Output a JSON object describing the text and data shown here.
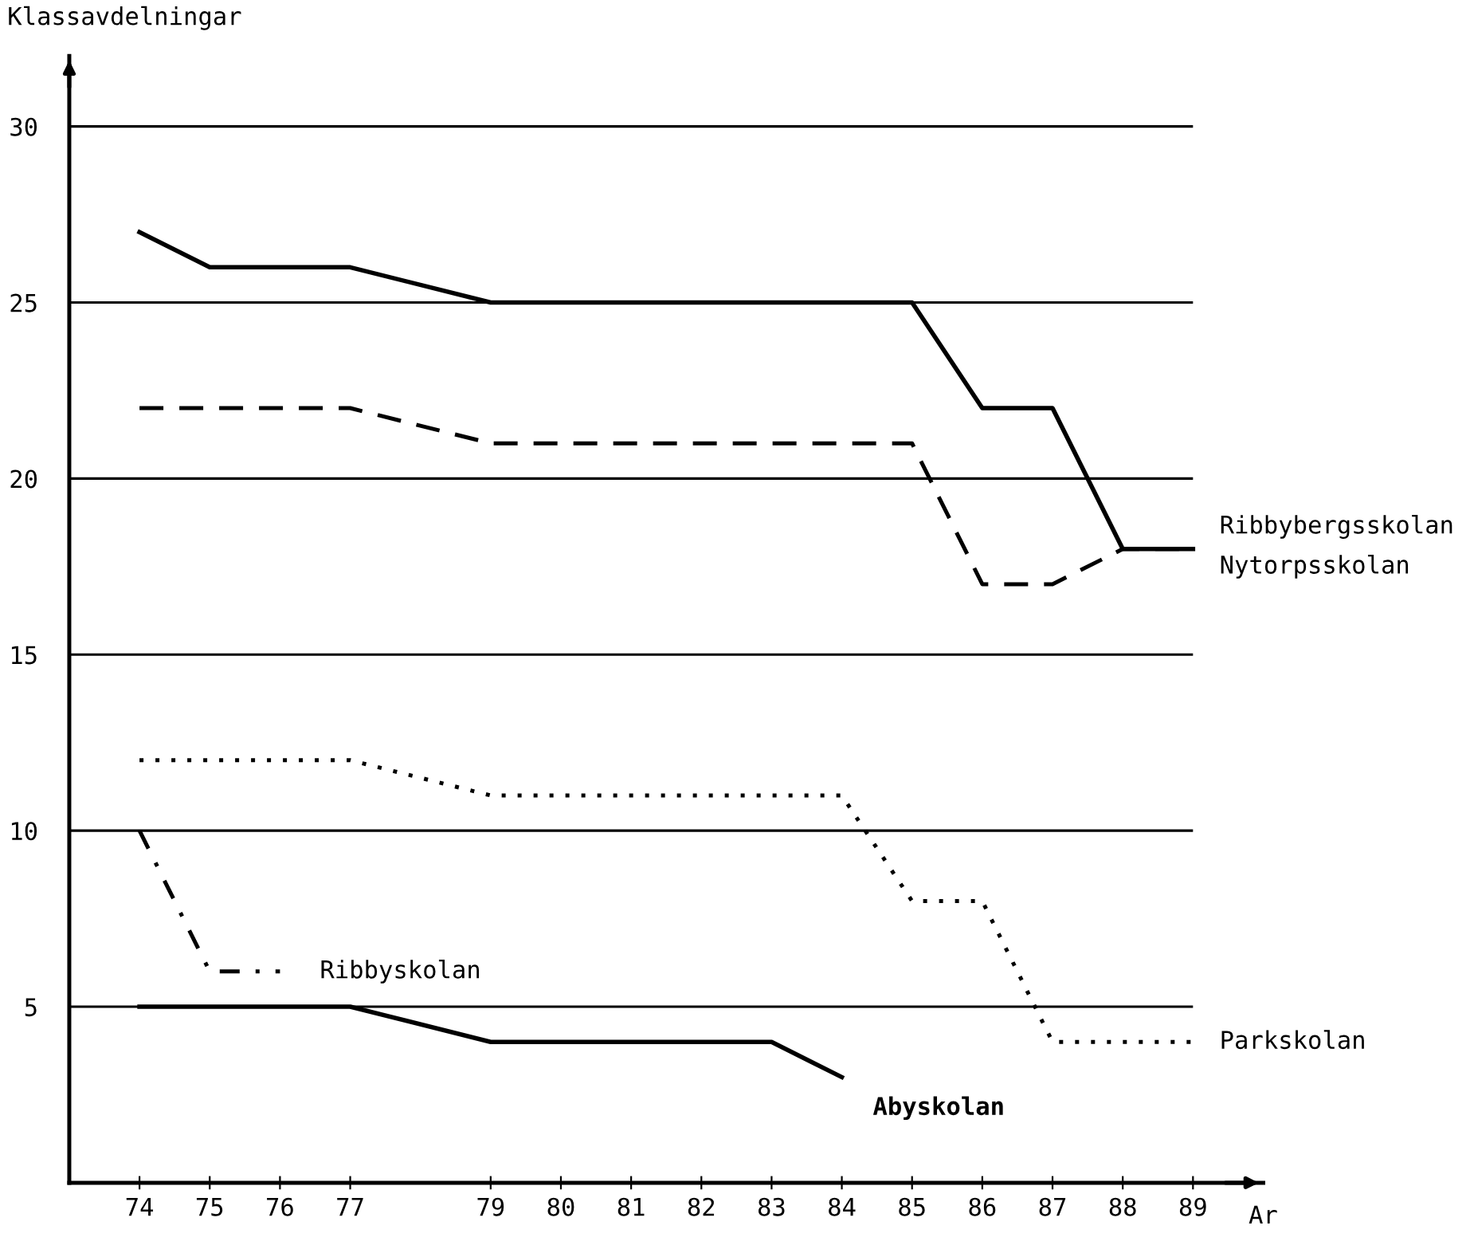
{
  "chart_data": {
    "type": "line",
    "ylabel": "Klassavdelningar",
    "xlabel": "Ar",
    "xlim": [
      73,
      90
    ],
    "xticks": [
      74,
      75,
      76,
      77,
      79,
      80,
      81,
      82,
      83,
      84,
      85,
      86,
      87,
      88,
      89
    ],
    "ylim": [
      0,
      32
    ],
    "yticks": [
      5,
      10,
      15,
      20,
      25,
      30
    ],
    "grid": "y",
    "marker": "none",
    "legend": false,
    "series": [
      {
        "name": "Ribbybergsskolan",
        "color": "#000000",
        "line_style": "solid",
        "x": [
          74,
          75,
          77,
          79,
          85,
          86,
          87,
          88,
          89
        ],
        "values": [
          27,
          26,
          26,
          25,
          25,
          22,
          22,
          18,
          18
        ]
      },
      {
        "name": "Nytorpsskolan",
        "color": "#000000",
        "line_style": "dashed",
        "x": [
          74,
          77,
          79,
          85,
          86,
          87,
          88,
          89
        ],
        "values": [
          22,
          22,
          21,
          21,
          17,
          17,
          18,
          18
        ]
      },
      {
        "name": "Ribbyskolan",
        "color": "#000000",
        "line_style": "dashdot",
        "x": [
          74,
          75,
          76
        ],
        "values": [
          10,
          6,
          6
        ]
      },
      {
        "name": "Parkskolan",
        "color": "#000000",
        "line_style": "dotted",
        "x": [
          74,
          77,
          79,
          84,
          85,
          86,
          87,
          89
        ],
        "values": [
          12,
          12,
          11,
          11,
          8,
          8,
          4,
          4
        ]
      },
      {
        "name": "Abyskolan",
        "color": "#000000",
        "line_style": "solid",
        "x": [
          74,
          77,
          79,
          83,
          84
        ],
        "values": [
          5,
          5,
          4,
          4,
          3
        ]
      }
    ]
  }
}
